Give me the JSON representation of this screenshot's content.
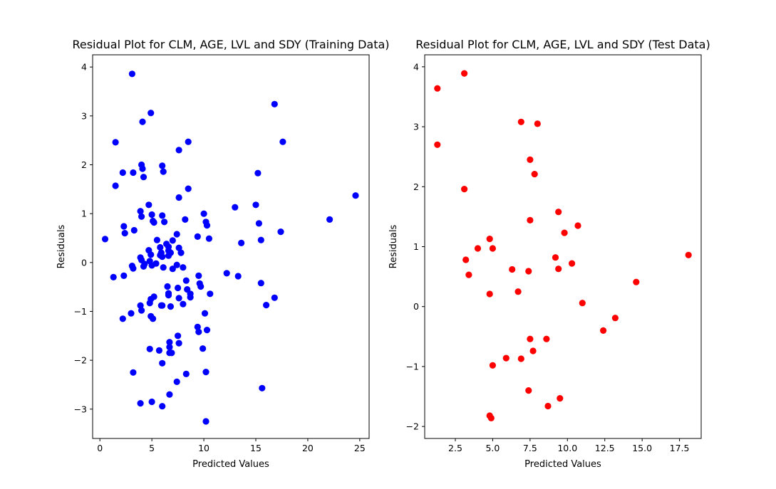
{
  "chart_data": [
    {
      "type": "scatter",
      "title": "Residual Plot for CLM, AGE, LVL and SDY (Training Data)",
      "xlabel": "Predicted Values",
      "ylabel": "Residuals",
      "xlim": [
        -0.7,
        25.9
      ],
      "ylim": [
        -3.6,
        4.25
      ],
      "xticks": [
        0,
        5,
        10,
        15,
        20,
        25
      ],
      "xtick_labels": [
        "0",
        "5",
        "10",
        "15",
        "20",
        "25"
      ],
      "yticks": [
        -3,
        -2,
        -1,
        0,
        1,
        2,
        3,
        4
      ],
      "ytick_labels": [
        "−3",
        "−2",
        "−1",
        "0",
        "1",
        "2",
        "3",
        "4"
      ],
      "grid": false,
      "color": "#0000ff",
      "x": [
        3.1,
        4.9,
        4.1,
        16.8,
        1.5,
        8.5,
        17.6,
        7.6,
        4.0,
        6.0,
        4.1,
        2.2,
        3.2,
        6.1,
        4.2,
        15.2,
        1.5,
        8.5,
        7.6,
        24.6,
        13.0,
        4.7,
        15.0,
        3.9,
        10.0,
        6.0,
        4.0,
        5.0,
        22.1,
        8.2,
        5.1,
        6.2,
        10.2,
        15.3,
        10.3,
        2.3,
        5.2,
        17.4,
        3.3,
        2.4,
        7.4,
        9.4,
        10.5,
        0.5,
        13.6,
        15.5,
        5.5,
        6.4,
        7.6,
        4.7,
        6.6,
        5.8,
        6.6,
        7.8,
        5.9,
        6.8,
        4.9,
        5.8,
        6.0,
        3.9,
        7.0,
        7.4,
        6.6,
        4.8,
        5.4,
        4.0,
        3.1,
        4.3,
        4.2,
        5.0,
        3.2,
        6.1,
        8.0,
        7.0,
        2.3,
        1.3,
        12.2,
        13.3,
        9.5,
        8.3,
        9.6,
        15.5,
        6.5,
        7.5,
        8.4,
        9.7,
        6.6,
        8.7,
        5.2,
        4.9,
        6.6,
        7.6,
        10.6,
        16.8,
        8.7,
        3.9,
        6.0,
        4.8,
        5.9,
        6.8,
        8.0,
        16.0,
        4.0,
        3.0,
        10.1,
        2.2,
        4.9,
        5.1,
        9.4,
        10.3,
        9.5,
        7.5,
        6.7,
        7.6,
        6.7,
        4.8,
        9.9,
        5.7,
        6.9,
        6.7,
        6.0,
        8.3,
        10.2,
        3.2,
        7.4,
        15.6,
        6.7,
        3.9,
        5.0,
        6.0,
        10.2
      ],
      "y": [
        3.86,
        3.06,
        2.88,
        3.24,
        2.46,
        2.47,
        2.47,
        2.3,
        2.0,
        1.98,
        1.92,
        1.84,
        1.84,
        1.86,
        1.75,
        1.83,
        1.57,
        1.51,
        1.33,
        1.37,
        1.13,
        1.18,
        1.18,
        1.05,
        1.0,
        0.96,
        0.94,
        0.98,
        0.88,
        0.88,
        0.85,
        0.83,
        0.83,
        0.8,
        0.76,
        0.74,
        0.82,
        0.63,
        0.66,
        0.6,
        0.58,
        0.53,
        0.49,
        0.48,
        0.4,
        0.46,
        0.46,
        0.38,
        0.3,
        0.25,
        0.32,
        0.31,
        0.24,
        0.2,
        0.2,
        0.2,
        0.16,
        0.15,
        0.12,
        0.1,
        0.45,
        -0.05,
        0.14,
        0.03,
        -0.02,
        0.05,
        -0.07,
        -0.03,
        -0.08,
        -0.06,
        -0.12,
        -0.1,
        -0.1,
        -0.13,
        -0.27,
        -0.3,
        -0.22,
        -0.28,
        -0.27,
        -0.37,
        -0.43,
        -0.42,
        -0.49,
        -0.52,
        -0.55,
        -0.49,
        -0.63,
        -0.64,
        -0.7,
        -0.75,
        -0.67,
        -0.73,
        -0.64,
        -0.72,
        -0.71,
        -0.88,
        -0.88,
        -0.83,
        -0.88,
        -0.9,
        -0.85,
        -0.87,
        -0.98,
        -1.04,
        -1.04,
        -1.15,
        -1.1,
        -1.15,
        -1.32,
        -1.38,
        -1.42,
        -1.5,
        -1.63,
        -1.65,
        -1.73,
        -1.77,
        -1.76,
        -1.8,
        -1.85,
        -1.85,
        -2.06,
        -2.28,
        -2.24,
        -2.25,
        -2.44,
        -2.57,
        -2.7,
        -2.88,
        -2.85,
        -2.94,
        -3.25
      ]
    },
    {
      "type": "scatter",
      "title": "Residual Plot for CLM, AGE, LVL and SDY (Test Data)",
      "xlabel": "Predicted Values",
      "ylabel": "Residuals",
      "xlim": [
        0.45,
        18.95
      ],
      "ylim": [
        -2.2,
        4.2
      ],
      "xticks": [
        2.5,
        5.0,
        7.5,
        10.0,
        12.5,
        15.0,
        17.5
      ],
      "xtick_labels": [
        "2.5",
        "5.0",
        "7.5",
        "10.0",
        "12.5",
        "15.0",
        "17.5"
      ],
      "yticks": [
        -2,
        -1,
        0,
        1,
        2,
        3,
        4
      ],
      "ytick_labels": [
        "−2",
        "−1",
        "0",
        "1",
        "2",
        "3",
        "4"
      ],
      "grid": false,
      "color": "#ff0000",
      "x": [
        1.3,
        3.1,
        1.3,
        6.9,
        8.0,
        7.5,
        7.8,
        3.1,
        9.4,
        7.5,
        10.7,
        9.8,
        4.8,
        4.0,
        5.0,
        9.2,
        3.2,
        10.3,
        6.3,
        9.4,
        7.4,
        3.4,
        6.7,
        4.8,
        18.1,
        14.6,
        11.0,
        13.2,
        12.4,
        7.5,
        8.6,
        7.7,
        5.9,
        6.9,
        5.0,
        7.4,
        9.5,
        8.7,
        4.8,
        4.9
      ],
      "y": [
        3.64,
        3.89,
        2.7,
        3.08,
        3.05,
        2.45,
        2.21,
        1.96,
        1.58,
        1.44,
        1.35,
        1.23,
        1.13,
        0.97,
        0.97,
        0.82,
        0.78,
        0.72,
        0.62,
        0.63,
        0.59,
        0.53,
        0.25,
        0.21,
        0.86,
        0.41,
        0.06,
        -0.19,
        -0.4,
        -0.54,
        -0.54,
        -0.74,
        -0.86,
        -0.87,
        -0.98,
        -1.4,
        -1.53,
        -1.66,
        -1.82,
        -1.86
      ]
    }
  ]
}
